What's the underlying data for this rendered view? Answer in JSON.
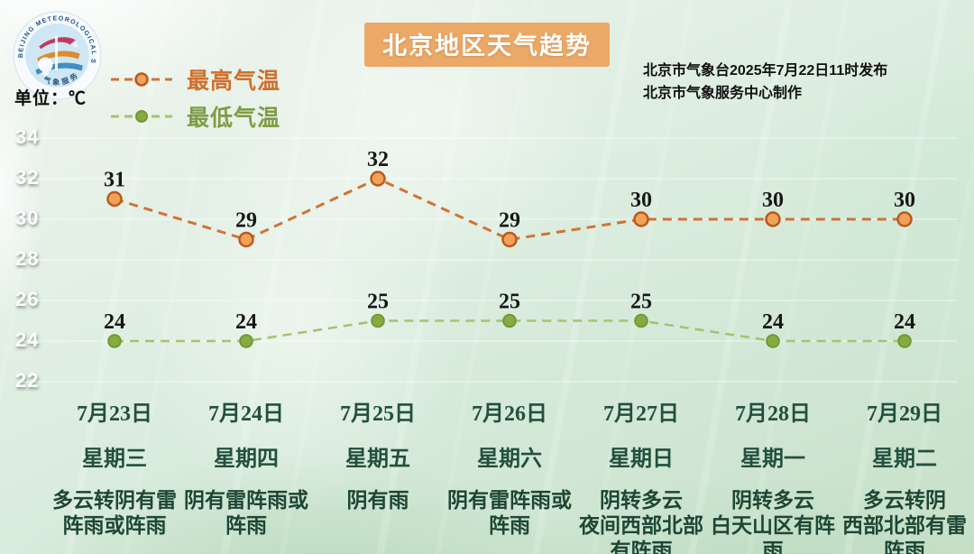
{
  "title": "北京地区天气趋势",
  "unit_label": "单位：℃",
  "source": {
    "line1": "北京市气象台2025年7月22日11时发布",
    "line2": "北京市气象服务中心制作"
  },
  "logo": {
    "ring_text": "BEIJING METEOROLOGICAL SERVICE",
    "bottom_text": "气象服务"
  },
  "legend": {
    "high_label": "最高气温",
    "low_label": "最低气温"
  },
  "colors": {
    "high_line": "#cf7434",
    "high_marker_fill": "#f2a159",
    "high_marker_stroke": "#b95a1d",
    "low_line": "#a8c173",
    "low_marker_fill": "#85ab43",
    "low_marker_stroke": "#74982f",
    "title_bg": "#eba867",
    "day_text": "#22503e"
  },
  "chart_data": {
    "type": "line",
    "categories": [
      "7月23日",
      "7月24日",
      "7月25日",
      "7月26日",
      "7月27日",
      "7月28日",
      "7月29日"
    ],
    "series": [
      {
        "name": "最高气温",
        "values": [
          31,
          29,
          32,
          29,
          30,
          30,
          30
        ],
        "color": "#cf7434",
        "style": "dashed",
        "marker": "circle-outlined"
      },
      {
        "name": "最低气温",
        "values": [
          24,
          24,
          25,
          25,
          25,
          24,
          24
        ],
        "color": "#85ab43",
        "style": "dashed",
        "marker": "dot-filled"
      }
    ],
    "yticks": [
      34,
      32,
      30,
      28,
      26,
      24,
      22
    ],
    "ylim": [
      21,
      35
    ],
    "ylabel": "℃",
    "grid": true,
    "legend_position": "top-left",
    "data_labels": true
  },
  "days": [
    {
      "date": "7月23日",
      "weekday": "星期三",
      "weather": "多云转阴有雷\n阵雨或阵雨"
    },
    {
      "date": "7月24日",
      "weekday": "星期四",
      "weather": "阴有雷阵雨或\n阵雨"
    },
    {
      "date": "7月25日",
      "weekday": "星期五",
      "weather": "阴有雨"
    },
    {
      "date": "7月26日",
      "weekday": "星期六",
      "weather": "阴有雷阵雨或\n阵雨"
    },
    {
      "date": "7月27日",
      "weekday": "星期日",
      "weather": "阴转多云\n夜间西部北部\n有阵雨"
    },
    {
      "date": "7月28日",
      "weekday": "星期一",
      "weather": "阴转多云\n白天山区有阵\n雨"
    },
    {
      "date": "7月29日",
      "weekday": "星期二",
      "weather": "多云转阴\n西部北部有雷\n阵雨"
    }
  ]
}
